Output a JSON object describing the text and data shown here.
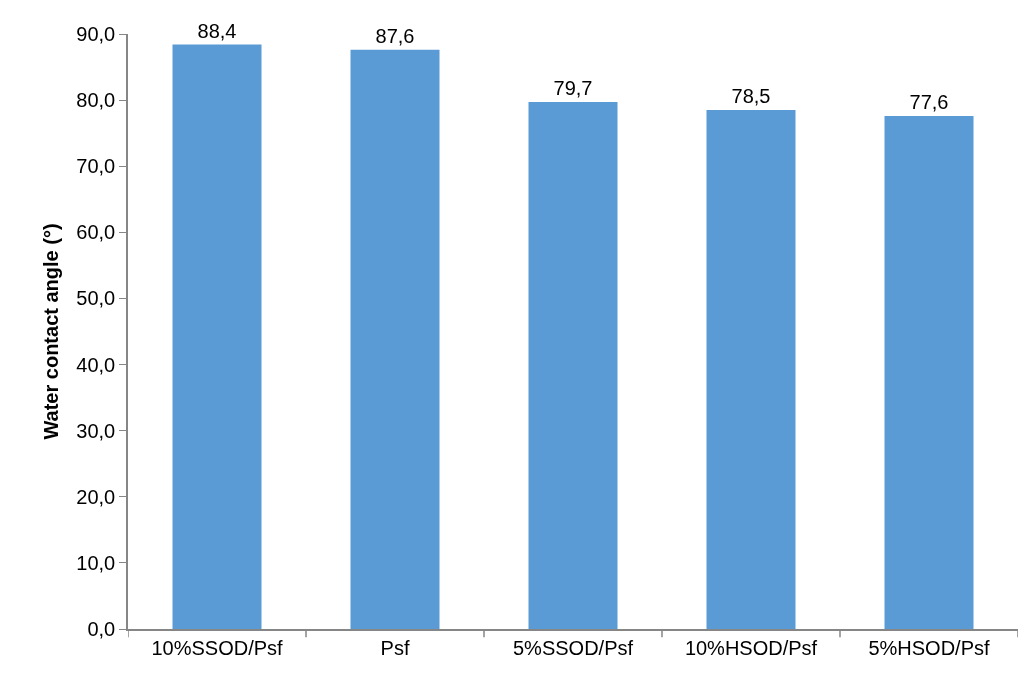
{
  "chart_data": {
    "type": "bar",
    "ylabel": "Water contact angle (°)",
    "categories": [
      "10%SSOD/Psf",
      "Psf",
      "5%SSOD/Psf",
      "10%HSOD/Psf",
      "5%HSOD/Psf"
    ],
    "values": [
      88.4,
      87.6,
      79.7,
      78.5,
      77.6
    ],
    "value_labels": [
      "88,4",
      "87,6",
      "79,7",
      "78,5",
      "77,6"
    ],
    "color": "#5b9bd5",
    "ylim": [
      0,
      90
    ],
    "yticks": [
      {
        "value": 0,
        "label": "0,0"
      },
      {
        "value": 10,
        "label": "10,0"
      },
      {
        "value": 20,
        "label": "20,0"
      },
      {
        "value": 30,
        "label": "30,0"
      },
      {
        "value": 40,
        "label": "40,0"
      },
      {
        "value": 50,
        "label": "50,0"
      },
      {
        "value": 60,
        "label": "60,0"
      },
      {
        "value": 70,
        "label": "70,0"
      },
      {
        "value": 80,
        "label": "80,0"
      },
      {
        "value": 90,
        "label": "90,0"
      }
    ],
    "grid": false
  }
}
